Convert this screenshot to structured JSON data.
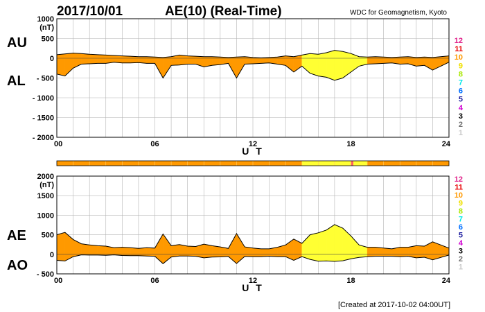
{
  "header": {
    "date": "2017/10/01",
    "title": "AE(10) (Real-Time)",
    "source": "WDC for Geomagnetism, Kyoto"
  },
  "footer": {
    "created": "[Created at 2017-10-02 04:00UT]"
  },
  "colors": {
    "orange": "#ff9900",
    "yellow": "#ffff33",
    "grid": "#b4b4b4"
  },
  "activity_scale": [
    {
      "label": "12",
      "color": "#e0208a"
    },
    {
      "label": "11",
      "color": "#e80000"
    },
    {
      "label": "10",
      "color": "#ff9900"
    },
    {
      "label": "9",
      "color": "#f0e000"
    },
    {
      "label": "8",
      "color": "#a8e800"
    },
    {
      "label": "7",
      "color": "#00e8e8"
    },
    {
      "label": "6",
      "color": "#0070ff"
    },
    {
      "label": "5",
      "color": "#2020a0"
    },
    {
      "label": "4",
      "color": "#d000d0"
    },
    {
      "label": "3",
      "color": "#000000"
    },
    {
      "label": "2",
      "color": "#707070"
    },
    {
      "label": "1",
      "color": "#c8c8c8"
    }
  ],
  "activity_bar": {
    "segments": [
      {
        "start": 0,
        "end": 15,
        "color": "#ff9900"
      },
      {
        "start": 15,
        "end": 18,
        "color": "#ffff33"
      },
      {
        "start": 18,
        "end": 18.15,
        "color": "#ff6060"
      },
      {
        "start": 18.15,
        "end": 19,
        "color": "#ffff33"
      },
      {
        "start": 19,
        "end": 24,
        "color": "#ff9900"
      }
    ]
  },
  "chart_data": [
    {
      "type": "area",
      "panel": "AU/AL",
      "label_upper": "AU",
      "label_lower": "AL",
      "unit": "(nT)",
      "xlabel": "U T",
      "xlim": [
        0,
        24
      ],
      "ylim": [
        -2000,
        1000
      ],
      "x_ticks": [
        "00",
        "06",
        "12",
        "18",
        "24"
      ],
      "y_ticks": [
        "1000",
        "500",
        "0",
        "- 500",
        "- 1000",
        "- 1500",
        "- 2000"
      ],
      "series": [
        {
          "name": "AU",
          "x": [
            0,
            0.5,
            1,
            1.5,
            2,
            2.5,
            3,
            3.5,
            4,
            4.5,
            5,
            5.5,
            6,
            6.5,
            7,
            7.5,
            8,
            8.5,
            9,
            9.5,
            10,
            10.5,
            11,
            11.5,
            12,
            12.5,
            13,
            13.5,
            14,
            14.5,
            15,
            15.5,
            16,
            16.5,
            17,
            17.5,
            18,
            18.5,
            19,
            19.5,
            20,
            20.5,
            21,
            21.5,
            22,
            22.5,
            23,
            23.5,
            24
          ],
          "values": [
            90,
            110,
            130,
            120,
            100,
            90,
            80,
            70,
            60,
            50,
            40,
            40,
            30,
            20,
            40,
            80,
            60,
            50,
            40,
            40,
            30,
            20,
            30,
            40,
            20,
            10,
            20,
            30,
            60,
            40,
            80,
            120,
            100,
            140,
            200,
            170,
            120,
            40,
            30,
            40,
            30,
            20,
            30,
            40,
            20,
            30,
            20,
            40,
            60
          ]
        },
        {
          "name": "AL",
          "x": [
            0,
            0.5,
            1,
            1.5,
            2,
            2.5,
            3,
            3.5,
            4,
            4.5,
            5,
            5.5,
            6,
            6.5,
            7,
            7.5,
            8,
            8.5,
            9,
            9.5,
            10,
            10.5,
            11,
            11.5,
            12,
            12.5,
            13,
            13.5,
            14,
            14.5,
            15,
            15.5,
            16,
            16.5,
            17,
            17.5,
            18,
            18.5,
            19,
            19.5,
            20,
            20.5,
            21,
            21.5,
            22,
            22.5,
            23,
            23.5,
            24
          ],
          "values": [
            -400,
            -450,
            -250,
            -150,
            -140,
            -130,
            -130,
            -100,
            -120,
            -120,
            -110,
            -130,
            -130,
            -500,
            -180,
            -170,
            -150,
            -150,
            -220,
            -180,
            -160,
            -130,
            -500,
            -150,
            -140,
            -130,
            -120,
            -150,
            -180,
            -350,
            -200,
            -380,
            -450,
            -480,
            -560,
            -500,
            -350,
            -200,
            -150,
            -140,
            -130,
            -120,
            -150,
            -140,
            -200,
            -180,
            -300,
            -200,
            -100
          ]
        }
      ]
    },
    {
      "type": "area",
      "panel": "AE/AO",
      "label_upper": "AE",
      "label_lower": "AO",
      "unit": "(nT)",
      "xlabel": "U T",
      "xlim": [
        0,
        24
      ],
      "ylim": [
        -500,
        2000
      ],
      "x_ticks": [
        "00",
        "06",
        "12",
        "18",
        "24"
      ],
      "y_ticks": [
        "2000",
        "1500",
        "1000",
        "500",
        "0",
        "- 500"
      ],
      "series": [
        {
          "name": "AE",
          "x": [
            0,
            0.5,
            1,
            1.5,
            2,
            2.5,
            3,
            3.5,
            4,
            4.5,
            5,
            5.5,
            6,
            6.5,
            7,
            7.5,
            8,
            8.5,
            9,
            9.5,
            10,
            10.5,
            11,
            11.5,
            12,
            12.5,
            13,
            13.5,
            14,
            14.5,
            15,
            15.5,
            16,
            16.5,
            17,
            17.5,
            18,
            18.5,
            19,
            19.5,
            20,
            20.5,
            21,
            21.5,
            22,
            22.5,
            23,
            23.5,
            24
          ],
          "values": [
            500,
            560,
            380,
            270,
            240,
            220,
            210,
            170,
            180,
            170,
            150,
            170,
            160,
            520,
            220,
            250,
            210,
            200,
            260,
            220,
            190,
            150,
            530,
            190,
            160,
            140,
            140,
            180,
            240,
            390,
            280,
            500,
            550,
            620,
            760,
            670,
            470,
            240,
            180,
            180,
            160,
            140,
            180,
            180,
            220,
            210,
            320,
            240,
            160
          ]
        },
        {
          "name": "AO",
          "x": [
            0,
            0.5,
            1,
            1.5,
            2,
            2.5,
            3,
            3.5,
            4,
            4.5,
            5,
            5.5,
            6,
            6.5,
            7,
            7.5,
            8,
            8.5,
            9,
            9.5,
            10,
            10.5,
            11,
            11.5,
            12,
            12.5,
            13,
            13.5,
            14,
            14.5,
            15,
            15.5,
            16,
            16.5,
            17,
            17.5,
            18,
            18.5,
            19,
            19.5,
            20,
            20.5,
            21,
            21.5,
            22,
            22.5,
            23,
            23.5,
            24
          ],
          "values": [
            -155,
            -170,
            -60,
            -15,
            -20,
            -20,
            -25,
            -15,
            -30,
            -35,
            -35,
            -45,
            -50,
            -240,
            -70,
            -45,
            -45,
            -50,
            -90,
            -70,
            -65,
            -55,
            -235,
            -55,
            -60,
            -60,
            -50,
            -60,
            -60,
            -155,
            -60,
            -130,
            -175,
            -170,
            -180,
            -165,
            -115,
            -80,
            -60,
            -50,
            -50,
            -50,
            -60,
            -50,
            -90,
            -75,
            -140,
            -80,
            -20
          ]
        }
      ]
    }
  ]
}
